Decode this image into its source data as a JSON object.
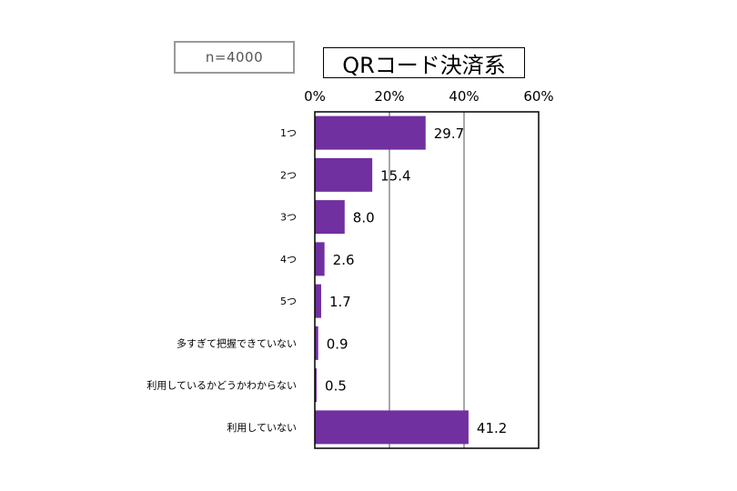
{
  "sample_size_label": "n=4000",
  "chart_data": {
    "type": "bar",
    "orientation": "horizontal",
    "title": "QRコード決済系",
    "categories": [
      "1つ",
      "2つ",
      "3つ",
      "4つ",
      "5つ",
      "多すぎて把握できていない",
      "利用しているかどうかわからない",
      "利用していない"
    ],
    "values": [
      29.7,
      15.4,
      8.0,
      2.6,
      1.7,
      0.9,
      0.5,
      41.2
    ],
    "value_labels": [
      "29.7",
      "15.4",
      "8.0",
      "2.6",
      "1.7",
      "0.9",
      "0.5",
      "41.2"
    ],
    "x_ticks": [
      "0%",
      "20%",
      "40%",
      "60%"
    ],
    "xlim": [
      0,
      60
    ],
    "xlabel": "",
    "ylabel": "",
    "grid": "vertical",
    "legend": "none",
    "bar_color": "#7030a0"
  }
}
